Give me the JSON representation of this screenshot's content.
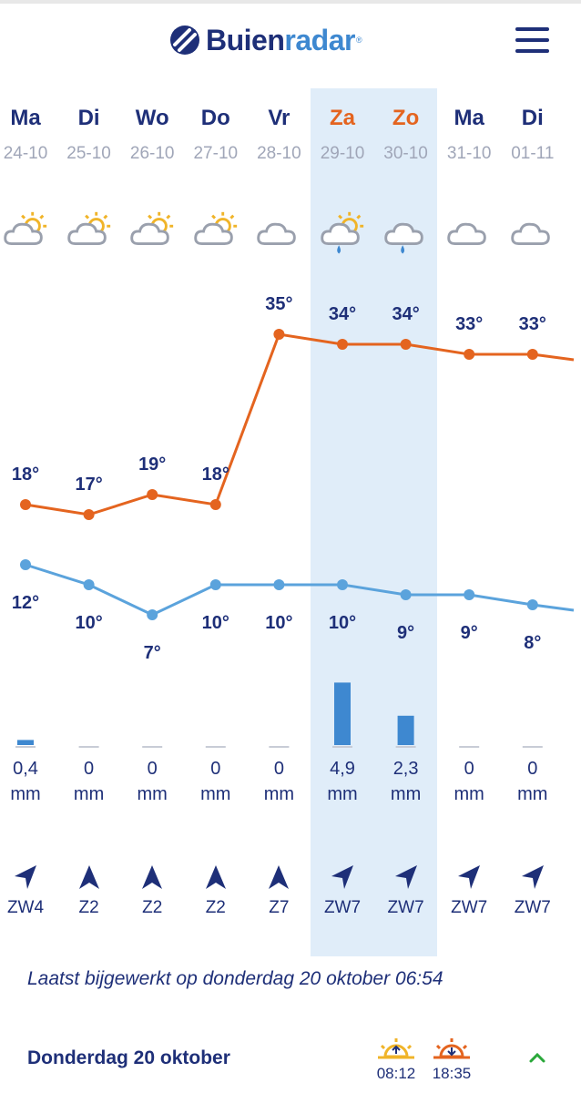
{
  "header": {
    "logo_main": "Buien",
    "logo_accent": "radar",
    "logo_mark": "®",
    "menu_icon": "hamburger-menu-icon"
  },
  "colors": {
    "navy": "#1e2f78",
    "max_temp": "#e4641f",
    "min_temp": "#5ba3dc",
    "rain_bar": "#3e88d0",
    "highlight": "#e0edf9",
    "weekend": "#e4641f",
    "sun": "#f0b429"
  },
  "days": [
    {
      "name": "Ma",
      "date": "24-10",
      "icon": "partly-sunny-icon",
      "max": "18°",
      "min": "12°",
      "rain": "0,4",
      "rain_unit": "mm",
      "wind_dir": "ZW",
      "wind": "ZW4",
      "weekend": false
    },
    {
      "name": "Di",
      "date": "25-10",
      "icon": "partly-sunny-icon",
      "max": "17°",
      "min": "10°",
      "rain": "0",
      "rain_unit": "mm",
      "wind_dir": "Z",
      "wind": "Z2",
      "weekend": false
    },
    {
      "name": "Wo",
      "date": "26-10",
      "icon": "partly-sunny-icon",
      "max": "19°",
      "min": "7°",
      "rain": "0",
      "rain_unit": "mm",
      "wind_dir": "Z",
      "wind": "Z2",
      "weekend": false
    },
    {
      "name": "Do",
      "date": "27-10",
      "icon": "partly-sunny-icon",
      "max": "18°",
      "min": "10°",
      "rain": "0",
      "rain_unit": "mm",
      "wind_dir": "Z",
      "wind": "Z2",
      "weekend": false
    },
    {
      "name": "Vr",
      "date": "28-10",
      "icon": "cloud-icon",
      "max": "35°",
      "min": "10°",
      "rain": "0",
      "rain_unit": "mm",
      "wind_dir": "Z",
      "wind": "Z7",
      "weekend": false
    },
    {
      "name": "Za",
      "date": "29-10",
      "icon": "sun-rain-cloud-icon",
      "max": "34°",
      "min": "10°",
      "rain": "4,9",
      "rain_unit": "mm",
      "wind_dir": "ZW",
      "wind": "ZW7",
      "weekend": true
    },
    {
      "name": "Zo",
      "date": "30-10",
      "icon": "rain-cloud-icon",
      "max": "34°",
      "min": "9°",
      "rain": "2,3",
      "rain_unit": "mm",
      "wind_dir": "ZW",
      "wind": "ZW7",
      "weekend": true
    },
    {
      "name": "Ma",
      "date": "31-10",
      "icon": "cloud-icon",
      "max": "33°",
      "min": "9°",
      "rain": "0",
      "rain_unit": "mm",
      "wind_dir": "ZW",
      "wind": "ZW7",
      "weekend": false
    },
    {
      "name": "Di",
      "date": "01-11",
      "icon": "cloud-icon",
      "max": "33°",
      "min": "8°",
      "rain": "0",
      "rain_unit": "mm",
      "wind_dir": "ZW",
      "wind": "ZW7",
      "weekend": false
    }
  ],
  "chart_data": {
    "type": "line",
    "categories": [
      "24-10",
      "25-10",
      "26-10",
      "27-10",
      "28-10",
      "29-10",
      "30-10",
      "31-10",
      "01-11"
    ],
    "series": [
      {
        "values": [
          18,
          17,
          19,
          18,
          35,
          34,
          34,
          33,
          33
        ]
      },
      {
        "values": [
          12,
          10,
          7,
          10,
          10,
          10,
          9,
          9,
          8
        ]
      }
    ],
    "rain_mm": [
      0.4,
      0,
      0,
      0,
      0,
      4.9,
      2.3,
      0,
      0
    ]
  },
  "footer": {
    "updated": "Laatst bijgewerkt op donderdag 20 oktober 06:54",
    "day_title": "Donderdag 20 oktober",
    "sunrise": "08:12",
    "sunset": "18:35",
    "sunrise_icon": "sunrise-icon",
    "sunset_icon": "sunset-icon",
    "collapse_icon": "chevron-up-icon"
  }
}
